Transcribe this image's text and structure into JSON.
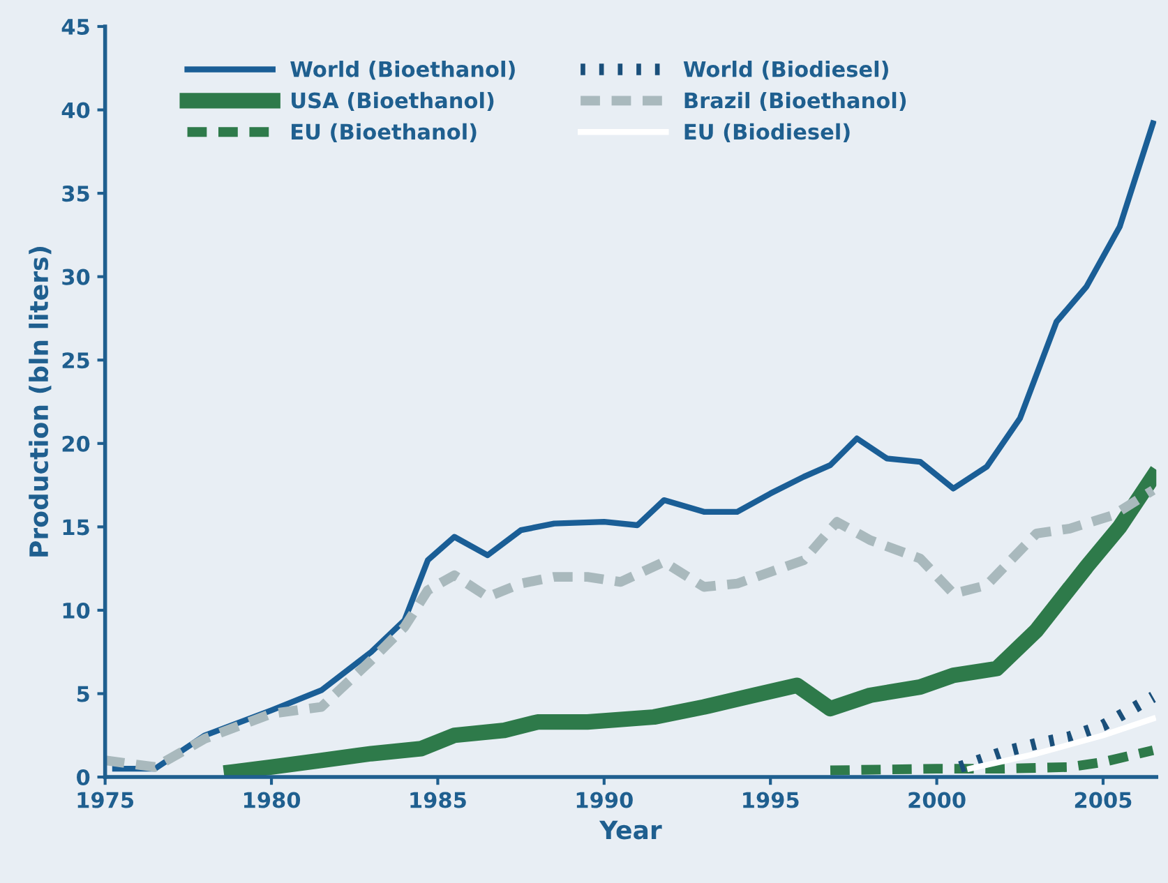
{
  "chart_data": {
    "type": "line",
    "xlabel": "Year",
    "ylabel": "Production (bln liters)",
    "xlim": [
      1975,
      2006.6
    ],
    "xticks": [
      1975,
      1980,
      1985,
      1990,
      1995,
      2000,
      2005
    ],
    "ylim": [
      0,
      45
    ],
    "yticks": [
      0,
      5,
      10,
      15,
      20,
      25,
      30,
      35,
      40,
      45
    ],
    "grid": false,
    "legend": "top left",
    "marker": "none",
    "series": [
      {
        "name": "World (Bioethanol)",
        "color": "#1a5e96",
        "line_style": "solid",
        "x": [
          1975.3,
          1976.5,
          1978,
          1980,
          1981.5,
          1983,
          1984,
          1984.7,
          1985.5,
          1986.5,
          1987.5,
          1988.5,
          1990,
          1991,
          1991.8,
          1993,
          1994,
          1995,
          1996,
          1996.8,
          1997.6,
          1998.5,
          1999.5,
          2000.5,
          2001.5,
          2002.5,
          2003.6,
          2004.5,
          2005.5,
          2006.5
        ],
        "values": [
          0.5,
          0.5,
          2.5,
          4,
          5.2,
          7.5,
          9.4,
          13,
          14.4,
          13.3,
          14.8,
          15.2,
          15.3,
          15.1,
          16.6,
          15.9,
          15.9,
          17,
          18,
          18.7,
          20.3,
          19.1,
          18.9,
          17.3,
          18.6,
          21.5,
          27.3,
          29.4,
          33,
          39.2
        ]
      },
      {
        "name": "USA (Bioethanol)",
        "color": "#2e7a4a",
        "line_style": "solid",
        "x": [
          1978.8,
          1980,
          1981.5,
          1983,
          1984.5,
          1985.5,
          1987,
          1988,
          1989.5,
          1991.5,
          1993,
          1994.5,
          1995.8,
          1996.8,
          1998,
          1999.5,
          2000.5,
          2001.8,
          2003,
          2004.5,
          2005.5,
          2006.5
        ],
        "values": [
          0.3,
          0.6,
          1.0,
          1.4,
          1.7,
          2.5,
          2.8,
          3.3,
          3.3,
          3.6,
          4.2,
          4.9,
          5.5,
          4.1,
          4.9,
          5.4,
          6.1,
          6.5,
          8.8,
          12.6,
          15.0,
          18.0
        ]
      },
      {
        "name": "EU (Bioethanol)",
        "color": "#2e7a4a",
        "line_style": "dashed",
        "x": [
          1996.8,
          2000,
          2002,
          2004,
          2005,
          2006.5
        ],
        "values": [
          0.4,
          0.5,
          0.5,
          0.6,
          0.9,
          1.6
        ]
      },
      {
        "name": "World (Biodiesel)",
        "color": "#1a4f7a",
        "line_style": "dotted",
        "x": [
          2000.7,
          2002,
          2003,
          2004,
          2005,
          2006.5
        ],
        "values": [
          0.6,
          1.5,
          2.0,
          2.4,
          3.1,
          4.8
        ]
      },
      {
        "name": "Brazil (Bioethanol)",
        "color": "#a9b9bd",
        "line_style": "dashed",
        "x": [
          1975,
          1976.5,
          1978,
          1980,
          1981.5,
          1983,
          1984,
          1984.7,
          1985.5,
          1986.5,
          1987.5,
          1988.5,
          1989.5,
          1990.5,
          1991.8,
          1993,
          1994,
          1995,
          1996,
          1997,
          1998,
          1999.5,
          2000.5,
          2001.5,
          2003,
          2004,
          2005.3,
          2006.5
        ],
        "values": [
          1.0,
          0.6,
          2.3,
          3.8,
          4.2,
          7,
          9,
          11.2,
          12.1,
          10.8,
          11.6,
          12.0,
          12.0,
          11.7,
          12.9,
          11.4,
          11.6,
          12.3,
          13.0,
          15.3,
          14.2,
          13.1,
          11.0,
          11.5,
          14.6,
          14.9,
          15.7,
          17.2
        ]
      },
      {
        "name": "EU (Biodiesel)",
        "color": "#ffffff",
        "line_style": "solid",
        "x": [
          2001,
          2003,
          2005,
          2006.5
        ],
        "values": [
          0.5,
          1.4,
          2.5,
          3.5
        ]
      }
    ]
  }
}
